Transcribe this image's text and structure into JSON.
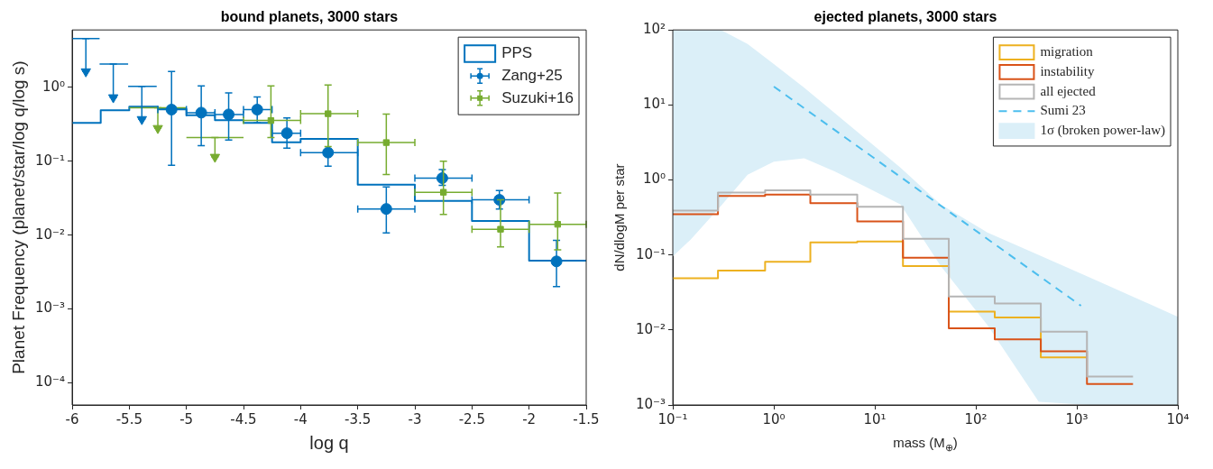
{
  "chart_data": [
    {
      "type": "scatter",
      "title": "bound planets, 3000 stars",
      "xlabel": "log q",
      "ylabel": "Planet Frequency (planet/star/log q/log s)",
      "xlim": [
        -6,
        -1.5
      ],
      "xticks": [
        -6,
        -5.5,
        -5,
        -4.5,
        -4,
        -3.5,
        -3,
        -2.5,
        -2,
        -1.5
      ],
      "ylim": [
        5e-05,
        6
      ],
      "yticks": [
        {
          "value": 0.0001,
          "label": "10⁻⁴"
        },
        {
          "value": 0.001,
          "label": "10⁻³"
        },
        {
          "value": 0.01,
          "label": "10⁻²"
        },
        {
          "value": 0.1,
          "label": "10⁻¹"
        },
        {
          "value": 1,
          "label": "10⁰"
        }
      ],
      "log": "y",
      "legend": "top right",
      "series": [
        {
          "name": "PPS",
          "type": "step",
          "color": "#0072bd",
          "x": [
            -6,
            -5.75,
            -5.5,
            -5.25,
            -5,
            -4.75,
            -4.5,
            -4.25,
            -4,
            -3.5,
            -3,
            -2.5,
            -2,
            -1.5
          ],
          "values": [
            0.33,
            0.49,
            0.55,
            0.51,
            0.42,
            0.36,
            0.33,
            0.18,
            0.2,
            0.048,
            0.029,
            0.0155,
            0.0045,
            0.0045
          ]
        },
        {
          "type": "line",
          "color": "#0072bd",
          "marker": "none",
          "x": [
            -6,
            -5.76
          ],
          "values": [
            4.6,
            4.6
          ]
        },
        {
          "type": "line",
          "color": "#0072bd",
          "marker": "none",
          "x": [
            -5.76,
            -5.51
          ],
          "values": [
            2.07,
            2.07
          ]
        },
        {
          "type": "line",
          "color": "#0072bd",
          "marker": "none",
          "x": [
            -5.51,
            -5.26
          ],
          "values": [
            1.03,
            1.03
          ]
        },
        {
          "color": "#0072bd",
          "marker": "triangle",
          "x": [
            -5.88,
            -5.64,
            -5.39
          ],
          "values": [
            1.64,
            0.73,
            0.37
          ],
          "errors": [
            [
              1.64,
              4.6
            ],
            [
              0.73,
              2.07
            ],
            [
              0.37,
              1.03
            ]
          ]
        },
        {
          "type": "line",
          "color": "#77ac30",
          "marker": "none",
          "x": [
            -5.5,
            -5.0
          ],
          "values": [
            0.53,
            0.53
          ]
        },
        {
          "type": "line",
          "color": "#77ac30",
          "marker": "none",
          "x": [
            -5.0,
            -4.5
          ],
          "values": [
            0.21,
            0.21
          ]
        },
        {
          "color": "#77ac30",
          "marker": "triangle",
          "x": [
            -5.25,
            -4.75
          ],
          "values": [
            0.28,
            0.114
          ],
          "errors": [
            [
              0.28,
              0.53
            ],
            [
              0.114,
              0.21
            ]
          ]
        },
        {
          "name": "Zang+25",
          "color": "#0072bd",
          "marker": "circle",
          "x": [
            -5.13,
            -4.87,
            -4.63,
            -4.38,
            -4.12,
            -3.76,
            -3.25,
            -2.76,
            -2.26,
            -1.76
          ],
          "values": [
            0.5,
            0.455,
            0.43,
            0.5,
            0.24,
            0.131,
            0.0226,
            0.059,
            0.03,
            0.0044
          ],
          "errors": [
            [
              0.088,
              1.64
            ],
            [
              0.163,
              1.05
            ],
            [
              0.194,
              0.84
            ],
            [
              0.33,
              0.74
            ],
            [
              0.15,
              0.385
            ],
            [
              0.086,
              0.2
            ],
            [
              0.0107,
              0.045
            ],
            [
              0.047,
              0.077
            ],
            [
              0.0226,
              0.04
            ],
            [
              0.002,
              0.0085
            ]
          ],
          "xerrors": [
            [
              -5.25,
              -5.0
            ],
            [
              -5.0,
              -4.75
            ],
            [
              -4.75,
              -4.5
            ],
            [
              -4.5,
              -4.25
            ],
            [
              -4.25,
              -4.0
            ],
            [
              -4.0,
              -3.5
            ],
            [
              -3.5,
              -3.0
            ],
            [
              -3.0,
              -2.5
            ],
            [
              -2.5,
              -2.0
            ],
            null
          ]
        },
        {
          "name": "Suzuki+16",
          "color": "#77ac30",
          "marker": "square",
          "x": [
            -4.26,
            -3.76,
            -3.25,
            -2.75,
            -2.25,
            -1.75
          ],
          "values": [
            0.356,
            0.44,
            0.179,
            0.038,
            0.012,
            0.014
          ],
          "errors": [
            [
              0.21,
              1.05
            ],
            [
              0.158,
              1.08
            ],
            [
              0.066,
              0.435
            ],
            [
              0.019,
              0.1
            ],
            [
              0.0069,
              0.03
            ],
            [
              0.0063,
              0.037
            ]
          ],
          "xerrors": [
            [
              -4.5,
              -4.0
            ],
            [
              -4.0,
              -3.5
            ],
            [
              -3.5,
              -3.0
            ],
            [
              -3.0,
              -2.5
            ],
            [
              -2.5,
              -2.0
            ],
            [
              -2.0,
              -1.5
            ]
          ]
        }
      ]
    },
    {
      "type": "step",
      "title": "ejected planets, 3000 stars",
      "xlabel": "mass (M$_{⊕}$)",
      "ylabel": "dN/dlogM per star",
      "xlim": [
        0.1,
        10000
      ],
      "xticks": [
        {
          "value": 0.1,
          "label": "10⁻¹"
        },
        {
          "value": 1,
          "label": "10⁰"
        },
        {
          "value": 10,
          "label": "10¹"
        },
        {
          "value": 100,
          "label": "10²"
        },
        {
          "value": 1000,
          "label": "10³"
        },
        {
          "value": 10000,
          "label": "10⁴"
        }
      ],
      "ylim": [
        0.001,
        100
      ],
      "yticks": [
        {
          "value": 0.001,
          "label": "10⁻³"
        },
        {
          "value": 0.01,
          "label": "10⁻²"
        },
        {
          "value": 0.1,
          "label": "10⁻¹"
        },
        {
          "value": 1,
          "label": "10⁰"
        },
        {
          "value": 10,
          "label": "10¹"
        },
        {
          "value": 100,
          "label": "10²"
        }
      ],
      "log": "xy",
      "legend": "top right",
      "series": [
        {
          "name": "migration",
          "color": "#edb120",
          "x": [
            0.1,
            0.28,
            0.82,
            2.3,
            6.7,
            19,
            54,
            154,
            440,
            1260
          ],
          "values": [
            0.049,
            0.062,
            0.081,
            0.147,
            0.151,
            0.071,
            0.0176,
            0.0147,
            0.0043,
            0.0043
          ]
        },
        {
          "name": "instability",
          "color": "#d95319",
          "x": [
            0.1,
            0.28,
            0.82,
            2.3,
            6.7,
            19,
            54,
            154,
            440,
            1260,
            3600
          ],
          "values": [
            0.35,
            0.61,
            0.64,
            0.49,
            0.28,
            0.092,
            0.0105,
            0.0075,
            0.0052,
            0.0019,
            0.0019
          ]
        },
        {
          "name": "all ejected",
          "color": "#b5b5b5",
          "x": [
            0.1,
            0.28,
            0.82,
            2.3,
            6.7,
            19,
            54,
            154,
            440,
            1260,
            3600
          ],
          "values": [
            0.39,
            0.68,
            0.73,
            0.64,
            0.44,
            0.164,
            0.028,
            0.0226,
            0.0095,
            0.0024,
            0.0024
          ]
        },
        {
          "name": "Sumi 23",
          "type": "line",
          "line_style": "dashed",
          "color": "#4dbeee",
          "x": [
            1,
            1100
          ],
          "values": [
            17.6,
            0.021
          ]
        },
        {
          "name": "1σ (broken power-law)",
          "type": "area",
          "color": "#dbeff8",
          "x": [
            0.1,
            0.15,
            0.3,
            0.55,
            1,
            2,
            4,
            8,
            18,
            45,
            130,
            420,
            1350,
            10000
          ],
          "values": [
            null,
            null,
            null,
            null,
            null,
            null,
            null,
            null,
            null,
            null,
            null,
            null,
            null,
            null
          ],
          "upper": [
            100,
            100,
            100,
            65,
            35,
            17,
            7.8,
            3.6,
            1.45,
            0.47,
            0.2,
            0.1,
            0.05,
            0.015
          ],
          "lower": [
            0.096,
            0.16,
            0.45,
            1.17,
            1.75,
            1.95,
            1.3,
            0.82,
            0.47,
            0.071,
            0.0117,
            0.0011,
            0.001,
            0.001
          ]
        }
      ]
    }
  ]
}
